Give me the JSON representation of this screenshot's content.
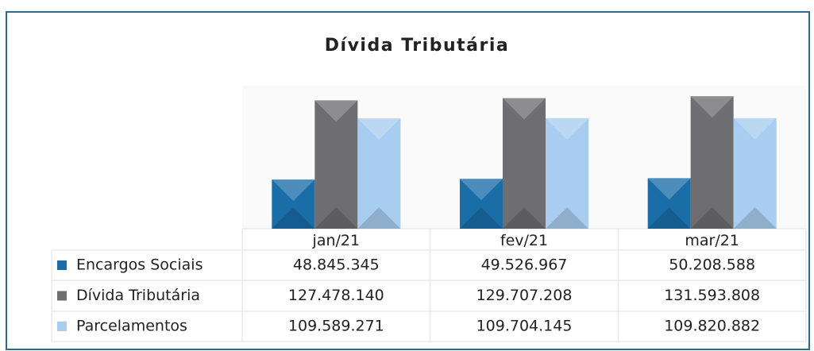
{
  "chart_data": {
    "type": "bar",
    "title": "Dívida Tributária",
    "categories": [
      "jan/21",
      "fev/21",
      "mar/21"
    ],
    "series": [
      {
        "name": "Encargos Sociais",
        "color": "#1a6ea8",
        "values": [
          48845345,
          49526967,
          50208588
        ],
        "value_labels": [
          "48.845.345",
          "49.526.967",
          "50.208.588"
        ]
      },
      {
        "name": "Dívida Tributária",
        "color": "#6e6e70",
        "values": [
          127478140,
          129707208,
          131593808
        ],
        "value_labels": [
          "127.478.140",
          "129.707.208",
          "131.593.808"
        ]
      },
      {
        "name": "Parcelamentos",
        "color": "#a8cdf0",
        "values": [
          109589271,
          109704145,
          109820882
        ],
        "value_labels": [
          "109.589.271",
          "109.704.145",
          "109.820.882"
        ]
      }
    ],
    "ylim": [
      0,
      142000000
    ]
  }
}
